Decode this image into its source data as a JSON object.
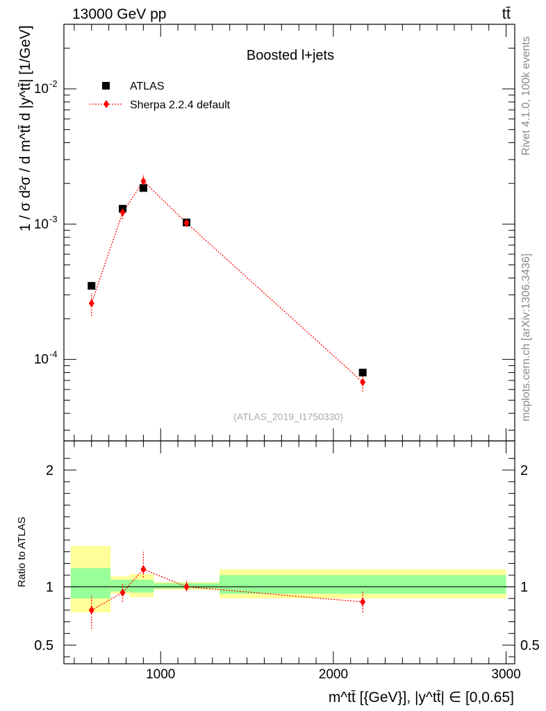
{
  "header": {
    "left": "13000 GeV pp",
    "right": "tt̄"
  },
  "side_labels": {
    "rivet": "Rivet 4.1.0,  100k events",
    "mcplots": "mcplots.cern.ch [arXiv:1306.3436]"
  },
  "chart_data": [
    {
      "type": "scatter",
      "title": "Boosted l+jets",
      "watermark": "(ATLAS_2019_I1750330)",
      "ylabel": "1 / σ d²σ / d m^tt̄ d |y^tt̄| [1/GeV]",
      "yscale": "log",
      "ylim": [
        2.5e-05,
        0.03
      ],
      "xlim": [
        440,
        3050
      ],
      "ytick_labels": [
        "10^-4",
        "10^-3",
        "10^-2"
      ],
      "legend": {
        "position": "top-left",
        "entries": [
          "ATLAS",
          "Sherpa 2.2.4 default"
        ]
      },
      "series": [
        {
          "name": "ATLAS",
          "marker": "square",
          "color": "#000000",
          "x": [
            600,
            780,
            900,
            1150,
            2170
          ],
          "y": [
            0.00035,
            0.0013,
            0.00185,
            0.00103,
            8e-05
          ]
        },
        {
          "name": "Sherpa 2.2.4 default",
          "marker": "diamond",
          "color": "#ff0000",
          "x": [
            600,
            780,
            900,
            1150,
            2170
          ],
          "y": [
            0.00026,
            0.00122,
            0.00208,
            0.00102,
            6.8e-05
          ],
          "yerr_low": [
            0.00021,
            0.00109,
            0.00185,
            0.00095,
            5.8e-05
          ],
          "yerr_high": [
            0.00031,
            0.00136,
            0.00235,
            0.00109,
            7.8e-05
          ]
        }
      ]
    },
    {
      "type": "scatter",
      "ylabel": "Ratio to ATLAS",
      "xlabel": "m^tt̄ [{GeV}], |y^tt̄| ∈ [0,0.65]",
      "ylim": [
        0.34,
        2.25
      ],
      "xlim": [
        440,
        3050
      ],
      "ytick_labels": [
        "0.5",
        "1",
        "2"
      ],
      "xtick_labels": [
        "1000",
        "2000",
        "3000"
      ],
      "reference_line": 1,
      "bands": [
        {
          "x0": 480,
          "x1": 710,
          "stat": [
            0.9,
            1.16
          ],
          "total": [
            0.78,
            1.35
          ]
        },
        {
          "x0": 710,
          "x1": 820,
          "stat": [
            0.96,
            1.06
          ],
          "total": [
            0.94,
            1.09
          ]
        },
        {
          "x0": 820,
          "x1": 960,
          "stat": [
            0.95,
            1.06
          ],
          "total": [
            0.91,
            1.11
          ]
        },
        {
          "x0": 960,
          "x1": 1340,
          "stat": [
            0.985,
            1.03
          ],
          "total": [
            0.975,
            1.04
          ]
        },
        {
          "x0": 1340,
          "x1": 3000,
          "stat": [
            0.94,
            1.1
          ],
          "total": [
            0.9,
            1.15
          ]
        }
      ],
      "series": [
        {
          "name": "Sherpa 2.2.4 default",
          "marker": "diamond",
          "color": "#ff0000",
          "x": [
            600,
            780,
            900,
            1150,
            2170
          ],
          "y": [
            0.8,
            0.95,
            1.15,
            1.0,
            0.87
          ],
          "yerr_low": [
            0.64,
            0.87,
            1.08,
            0.96,
            0.78
          ],
          "yerr_high": [
            0.93,
            1.03,
            1.3,
            1.06,
            0.96
          ]
        }
      ]
    }
  ]
}
